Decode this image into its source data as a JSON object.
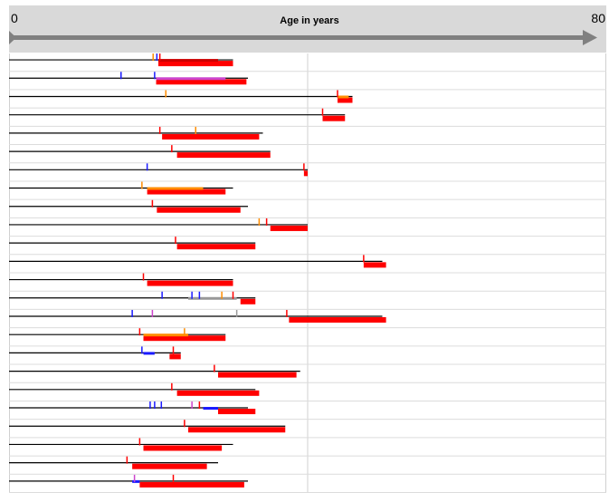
{
  "chart_data": {
    "type": "timeline",
    "xlabel": "Age in years",
    "xlim": [
      0,
      80
    ],
    "tick_labels": [
      "0",
      "80"
    ],
    "grid": true,
    "colors": {
      "lifeline": "#000000",
      "main_bar": "#ff0000",
      "dark_bar": "#cc0000",
      "orange": "#ff8c00",
      "blue": "#1a1aff",
      "purple": "#cc44cc",
      "gray": "#999999",
      "header_bg": "#d9d9d9",
      "arrow": "#808080"
    },
    "rows": [
      {
        "line_end": 30,
        "segments": [
          {
            "x0": 20.0,
            "x1": 30.0,
            "color": "red"
          },
          {
            "x0": 20.0,
            "x1": 28.0,
            "color": "dark_red"
          }
        ],
        "ticks": [
          {
            "x": 19.3,
            "color": "orange"
          },
          {
            "x": 19.8,
            "color": "blue"
          },
          {
            "x": 20.2,
            "color": "red"
          }
        ]
      },
      {
        "line_end": 32,
        "segments": [
          {
            "x0": 19.7,
            "x1": 31.8,
            "color": "red"
          },
          {
            "x0": 19.7,
            "x1": 29.0,
            "color": "purple"
          }
        ],
        "ticks": [
          {
            "x": 15.0,
            "color": "blue"
          },
          {
            "x": 19.5,
            "color": "blue"
          }
        ]
      },
      {
        "line_end": 46,
        "segments": [
          {
            "x0": 44.0,
            "x1": 46.0,
            "color": "red"
          },
          {
            "x0": 44.0,
            "x1": 45.5,
            "color": "orange"
          }
        ],
        "ticks": [
          {
            "x": 21.0,
            "color": "orange"
          },
          {
            "x": 44.0,
            "color": "red"
          }
        ]
      },
      {
        "line_end": 45,
        "segments": [
          {
            "x0": 42.0,
            "x1": 45.0,
            "color": "red"
          }
        ],
        "ticks": [
          {
            "x": 42.0,
            "color": "red"
          }
        ]
      },
      {
        "line_end": 34,
        "segments": [
          {
            "x0": 20.5,
            "x1": 33.5,
            "color": "red"
          }
        ],
        "ticks": [
          {
            "x": 20.2,
            "color": "red"
          },
          {
            "x": 25.0,
            "color": "orange"
          }
        ]
      },
      {
        "line_end": 35,
        "segments": [
          {
            "x0": 22.5,
            "x1": 35.0,
            "color": "red"
          }
        ],
        "ticks": [
          {
            "x": 21.8,
            "color": "red"
          }
        ]
      },
      {
        "line_end": 40,
        "segments": [
          {
            "x0": 39.5,
            "x1": 40.0,
            "color": "red"
          }
        ],
        "ticks": [
          {
            "x": 18.5,
            "color": "blue"
          },
          {
            "x": 39.5,
            "color": "red"
          }
        ]
      },
      {
        "line_end": 30,
        "segments": [
          {
            "x0": 18.5,
            "x1": 29.0,
            "color": "red"
          },
          {
            "x0": 18.5,
            "x1": 26.0,
            "color": "orange"
          }
        ],
        "ticks": [
          {
            "x": 17.8,
            "color": "orange"
          }
        ]
      },
      {
        "line_end": 32,
        "segments": [
          {
            "x0": 19.8,
            "x1": 31.0,
            "color": "red"
          }
        ],
        "ticks": [
          {
            "x": 19.2,
            "color": "red"
          }
        ]
      },
      {
        "line_end": 40,
        "segments": [
          {
            "x0": 35.0,
            "x1": 40.0,
            "color": "red"
          }
        ],
        "ticks": [
          {
            "x": 33.5,
            "color": "orange"
          },
          {
            "x": 34.5,
            "color": "red"
          }
        ]
      },
      {
        "line_end": 33,
        "segments": [
          {
            "x0": 22.5,
            "x1": 33.0,
            "color": "red"
          }
        ],
        "ticks": [
          {
            "x": 22.3,
            "color": "red"
          }
        ]
      },
      {
        "line_end": 50,
        "segments": [
          {
            "x0": 47.5,
            "x1": 50.5,
            "color": "red"
          }
        ],
        "ticks": [
          {
            "x": 47.5,
            "color": "red"
          }
        ]
      },
      {
        "line_end": 30,
        "segments": [
          {
            "x0": 18.5,
            "x1": 30.0,
            "color": "red"
          }
        ],
        "ticks": [
          {
            "x": 18.0,
            "color": "red"
          }
        ]
      },
      {
        "line_end": 33,
        "segments": [
          {
            "x0": 31.0,
            "x1": 33.0,
            "color": "red"
          },
          {
            "x0": 24.0,
            "x1": 30.5,
            "color": "gray"
          }
        ],
        "ticks": [
          {
            "x": 20.5,
            "color": "blue"
          },
          {
            "x": 24.5,
            "color": "blue"
          },
          {
            "x": 25.5,
            "color": "blue"
          },
          {
            "x": 28.5,
            "color": "orange"
          },
          {
            "x": 30.0,
            "color": "red"
          }
        ]
      },
      {
        "line_end": 50,
        "segments": [
          {
            "x0": 37.5,
            "x1": 50.5,
            "color": "red"
          }
        ],
        "ticks": [
          {
            "x": 16.5,
            "color": "blue"
          },
          {
            "x": 19.2,
            "color": "purple"
          },
          {
            "x": 30.5,
            "color": "gray"
          },
          {
            "x": 37.2,
            "color": "red"
          }
        ]
      },
      {
        "line_end": 29,
        "segments": [
          {
            "x0": 18.0,
            "x1": 29.0,
            "color": "red"
          },
          {
            "x0": 18.0,
            "x1": 24.0,
            "color": "orange"
          }
        ],
        "ticks": [
          {
            "x": 17.5,
            "color": "red"
          },
          {
            "x": 23.5,
            "color": "orange"
          }
        ]
      },
      {
        "line_end": 23,
        "segments": [
          {
            "x0": 18.0,
            "x1": 19.5,
            "color": "blue"
          },
          {
            "x0": 21.5,
            "x1": 23.0,
            "color": "red"
          }
        ],
        "ticks": [
          {
            "x": 17.8,
            "color": "blue"
          },
          {
            "x": 22.0,
            "color": "red"
          }
        ]
      },
      {
        "line_end": 39,
        "segments": [
          {
            "x0": 28.0,
            "x1": 38.5,
            "color": "red"
          }
        ],
        "ticks": [
          {
            "x": 27.5,
            "color": "red"
          }
        ]
      },
      {
        "line_end": 33,
        "segments": [
          {
            "x0": 22.5,
            "x1": 33.5,
            "color": "red"
          }
        ],
        "ticks": [
          {
            "x": 21.8,
            "color": "red"
          }
        ]
      },
      {
        "line_end": 32,
        "segments": [
          {
            "x0": 26.0,
            "x1": 28.0,
            "color": "blue"
          },
          {
            "x0": 28.0,
            "x1": 33.0,
            "color": "red"
          }
        ],
        "ticks": [
          {
            "x": 18.9,
            "color": "blue"
          },
          {
            "x": 19.5,
            "color": "blue"
          },
          {
            "x": 20.4,
            "color": "blue"
          },
          {
            "x": 24.5,
            "color": "purple"
          },
          {
            "x": 25.5,
            "color": "red"
          }
        ]
      },
      {
        "line_end": 37,
        "segments": [
          {
            "x0": 24.0,
            "x1": 37.0,
            "color": "red"
          }
        ],
        "ticks": [
          {
            "x": 23.5,
            "color": "red"
          }
        ]
      },
      {
        "line_end": 30,
        "segments": [
          {
            "x0": 18.0,
            "x1": 28.5,
            "color": "red"
          }
        ],
        "ticks": [
          {
            "x": 17.5,
            "color": "red"
          }
        ]
      },
      {
        "line_end": 28,
        "segments": [
          {
            "x0": 16.5,
            "x1": 26.5,
            "color": "red"
          }
        ],
        "ticks": [
          {
            "x": 15.8,
            "color": "red"
          }
        ]
      },
      {
        "line_end": 32,
        "segments": [
          {
            "x0": 17.5,
            "x1": 31.5,
            "color": "red"
          },
          {
            "x0": 16.5,
            "x1": 17.5,
            "color": "blue"
          }
        ],
        "ticks": [
          {
            "x": 16.8,
            "color": "purple"
          },
          {
            "x": 22.0,
            "color": "red"
          }
        ]
      }
    ]
  }
}
